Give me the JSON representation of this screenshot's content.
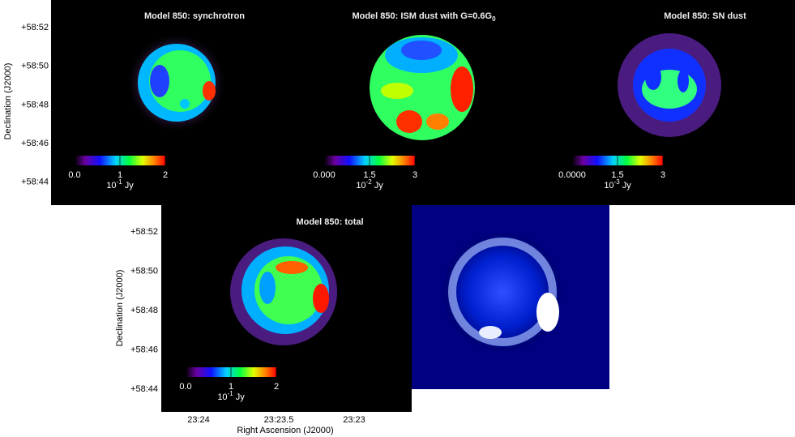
{
  "panels": [
    {
      "title": "Model 850: synchrotron",
      "colorbar": {
        "ticks": [
          "0.0",
          "1",
          "2"
        ],
        "unit_base": "10",
        "unit_exp": "-1",
        "unit": "Jy"
      }
    },
    {
      "title": "Model 850: ISM dust with G=0.6G",
      "title_sub": "0",
      "colorbar": {
        "ticks": [
          "0.000",
          "1.5",
          "3"
        ],
        "unit_base": "10",
        "unit_exp": "-2",
        "unit": "Jy"
      }
    },
    {
      "title": "Model 850: SN dust",
      "colorbar": {
        "ticks": [
          "0.0000",
          "1.5",
          "3"
        ],
        "unit_base": "10",
        "unit_exp": "-3",
        "unit": "Jy"
      }
    },
    {
      "title": "Model 850: total",
      "colorbar": {
        "ticks": [
          "0.0",
          "1",
          "2"
        ],
        "unit_base": "10",
        "unit_exp": "-1",
        "unit": "Jy"
      }
    }
  ],
  "dec_ticks": [
    "+58:52",
    "+58:50",
    "+58:48",
    "+58:46",
    "+58:44"
  ],
  "dec_label": "Declination (J2000)",
  "ra_ticks": [
    "23:24",
    "23:23.5",
    "23:23"
  ],
  "ra_label": "Right Ascension (J2000)"
}
